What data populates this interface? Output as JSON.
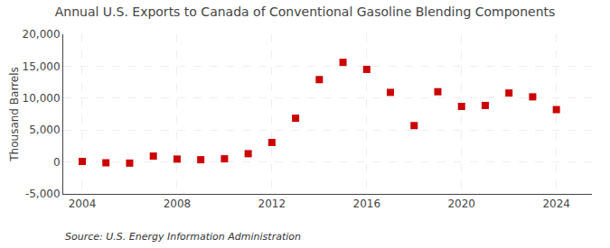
{
  "chart_data": {
    "type": "scatter",
    "title": "Annual U.S. Exports to Canada of Conventional Gasoline Blending Components",
    "ylabel": "Thousand Barrels",
    "annotations": [
      "Source: U.S. Energy Information Administration"
    ],
    "x": [
      2004,
      2005,
      2006,
      2007,
      2008,
      2009,
      2010,
      2011,
      2012,
      2013,
      2014,
      2015,
      2016,
      2017,
      2018,
      2019,
      2020,
      2021,
      2022,
      2023,
      2024
    ],
    "values": [
      80,
      -130,
      -180,
      920,
      450,
      350,
      500,
      1300,
      3050,
      6850,
      12900,
      15600,
      14500,
      10900,
      5700,
      11000,
      8700,
      8850,
      10800,
      10200,
      8200
    ],
    "color": "#cc0000",
    "marker": "square",
    "xlim": [
      2003.2,
      2025.5
    ],
    "xticks": [
      2004,
      2008,
      2012,
      2016,
      2020,
      2024
    ],
    "ylim": [
      -5000,
      20000
    ],
    "yticks": [
      {
        "value": -5000,
        "label": "-5,000"
      },
      0,
      {
        "value": 5000,
        "label": "5,000"
      },
      {
        "value": 10000,
        "label": "10,000"
      },
      {
        "value": 15000,
        "label": "15,000"
      },
      {
        "value": 20000,
        "label": "20,000"
      }
    ],
    "grid": true
  }
}
